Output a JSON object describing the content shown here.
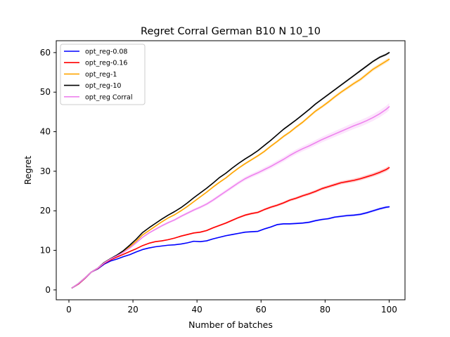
{
  "chart_data": {
    "type": "line",
    "title": "Regret Corral German B10 N 10_10",
    "xlabel": "Number of batches",
    "ylabel": "Regret",
    "xlim": [
      -3.95,
      104.95
    ],
    "ylim": [
      -2.5,
      63.0
    ],
    "x_ticks": [
      0,
      20,
      40,
      60,
      80,
      100
    ],
    "y_ticks": [
      0,
      10,
      20,
      30,
      40,
      50,
      60
    ],
    "grid": false,
    "legend_position": "top-left",
    "series": [
      {
        "name": "opt_reg-0.08",
        "color": "#0000ff",
        "band": 0.3,
        "x": [
          1,
          3,
          5,
          7,
          9,
          11,
          13,
          15,
          17,
          19,
          21,
          23,
          25,
          27,
          29,
          31,
          33,
          35,
          37,
          39,
          41,
          43,
          45,
          47,
          49,
          51,
          53,
          55,
          57,
          59,
          61,
          63,
          65,
          67,
          69,
          71,
          73,
          75,
          77,
          79,
          81,
          83,
          85,
          87,
          89,
          91,
          93,
          95,
          97,
          99,
          100
        ],
        "y": [
          0.5,
          1.5,
          2.9,
          4.5,
          5.3,
          6.5,
          7.3,
          7.8,
          8.4,
          8.9,
          9.6,
          10.2,
          10.6,
          10.9,
          11.1,
          11.3,
          11.4,
          11.6,
          11.9,
          12.3,
          12.2,
          12.4,
          12.9,
          13.3,
          13.7,
          14.0,
          14.3,
          14.6,
          14.7,
          14.8,
          15.4,
          15.9,
          16.5,
          16.7,
          16.7,
          16.8,
          16.9,
          17.1,
          17.5,
          17.8,
          18.0,
          18.4,
          18.6,
          18.8,
          18.9,
          19.1,
          19.5,
          20.0,
          20.5,
          20.9,
          21.0
        ]
      },
      {
        "name": "opt_reg-0.16",
        "color": "#ff0000",
        "band": 0.5,
        "x": [
          1,
          3,
          5,
          7,
          9,
          11,
          13,
          15,
          17,
          19,
          21,
          23,
          25,
          27,
          29,
          31,
          33,
          35,
          37,
          39,
          41,
          43,
          45,
          47,
          49,
          51,
          53,
          55,
          57,
          59,
          61,
          63,
          65,
          67,
          69,
          71,
          73,
          75,
          77,
          79,
          81,
          83,
          85,
          87,
          89,
          91,
          93,
          95,
          97,
          99,
          100
        ],
        "y": [
          0.5,
          1.5,
          2.9,
          4.5,
          5.4,
          6.7,
          7.6,
          8.3,
          9.0,
          9.7,
          10.4,
          11.2,
          11.8,
          12.2,
          12.4,
          12.7,
          13.1,
          13.6,
          14.0,
          14.4,
          14.6,
          15.0,
          15.7,
          16.3,
          16.9,
          17.6,
          18.3,
          18.9,
          19.3,
          19.6,
          20.3,
          20.9,
          21.4,
          22.0,
          22.7,
          23.2,
          23.8,
          24.3,
          24.9,
          25.6,
          26.1,
          26.6,
          27.1,
          27.4,
          27.7,
          28.1,
          28.6,
          29.1,
          29.7,
          30.4,
          30.9
        ]
      },
      {
        "name": "opt_reg-1",
        "color": "#ffa500",
        "band": 0.5,
        "x": [
          1,
          3,
          5,
          7,
          9,
          11,
          13,
          15,
          17,
          19,
          21,
          23,
          25,
          27,
          29,
          31,
          33,
          35,
          37,
          39,
          41,
          43,
          45,
          47,
          49,
          51,
          53,
          55,
          57,
          59,
          61,
          63,
          65,
          67,
          69,
          71,
          73,
          75,
          77,
          79,
          81,
          83,
          85,
          87,
          89,
          91,
          93,
          95,
          97,
          99,
          100
        ],
        "y": [
          0.5,
          1.6,
          3.0,
          4.5,
          5.5,
          6.9,
          7.9,
          8.7,
          9.7,
          10.9,
          12.3,
          13.9,
          15.0,
          16.1,
          17.2,
          18.2,
          19.0,
          20.0,
          21.1,
          22.3,
          23.5,
          24.7,
          26.0,
          27.2,
          28.3,
          29.6,
          30.8,
          31.9,
          32.9,
          33.9,
          35.0,
          36.3,
          37.5,
          38.8,
          39.9,
          41.2,
          42.4,
          43.8,
          45.2,
          46.3,
          47.5,
          48.8,
          50.0,
          51.1,
          52.2,
          53.2,
          54.5,
          55.8,
          56.8,
          57.8,
          58.3
        ]
      },
      {
        "name": "opt_reg-10",
        "color": "#000000",
        "band": 0.3,
        "x": [
          1,
          3,
          5,
          7,
          9,
          11,
          13,
          15,
          17,
          19,
          21,
          23,
          25,
          27,
          29,
          31,
          33,
          35,
          37,
          39,
          41,
          43,
          45,
          47,
          49,
          51,
          53,
          55,
          57,
          59,
          61,
          63,
          65,
          67,
          69,
          71,
          73,
          75,
          77,
          79,
          81,
          83,
          85,
          87,
          89,
          91,
          93,
          95,
          97,
          99,
          100
        ],
        "y": [
          0.5,
          1.6,
          3.0,
          4.5,
          5.5,
          6.9,
          7.9,
          8.8,
          9.9,
          11.3,
          12.8,
          14.5,
          15.7,
          16.8,
          17.9,
          18.9,
          19.8,
          20.8,
          22.0,
          23.3,
          24.5,
          25.7,
          27.0,
          28.4,
          29.5,
          30.8,
          32.0,
          33.1,
          34.1,
          35.2,
          36.5,
          37.8,
          39.2,
          40.6,
          41.8,
          43.0,
          44.3,
          45.6,
          47.0,
          48.2,
          49.4,
          50.6,
          51.8,
          53.0,
          54.2,
          55.4,
          56.6,
          57.8,
          58.8,
          59.5,
          60.0
        ]
      },
      {
        "name": "opt_reg Corral",
        "color": "#ee82ee",
        "band": 0.9,
        "x": [
          1,
          3,
          5,
          7,
          9,
          11,
          13,
          15,
          17,
          19,
          21,
          23,
          25,
          27,
          29,
          31,
          33,
          35,
          37,
          39,
          41,
          43,
          45,
          47,
          49,
          51,
          53,
          55,
          57,
          59,
          61,
          63,
          65,
          67,
          69,
          71,
          73,
          75,
          77,
          79,
          81,
          83,
          85,
          87,
          89,
          91,
          93,
          95,
          97,
          99,
          100
        ],
        "y": [
          0.5,
          1.6,
          3.0,
          4.5,
          5.5,
          6.8,
          7.8,
          8.6,
          9.5,
          10.6,
          11.9,
          13.3,
          14.4,
          15.3,
          16.2,
          17.0,
          17.7,
          18.6,
          19.4,
          20.2,
          20.9,
          21.7,
          22.7,
          23.8,
          24.9,
          26.0,
          27.1,
          28.1,
          28.9,
          29.6,
          30.4,
          31.2,
          32.1,
          33.0,
          34.0,
          34.9,
          35.7,
          36.4,
          37.2,
          38.0,
          38.7,
          39.4,
          40.1,
          40.8,
          41.5,
          42.1,
          42.8,
          43.6,
          44.5,
          45.6,
          46.3
        ]
      }
    ]
  }
}
